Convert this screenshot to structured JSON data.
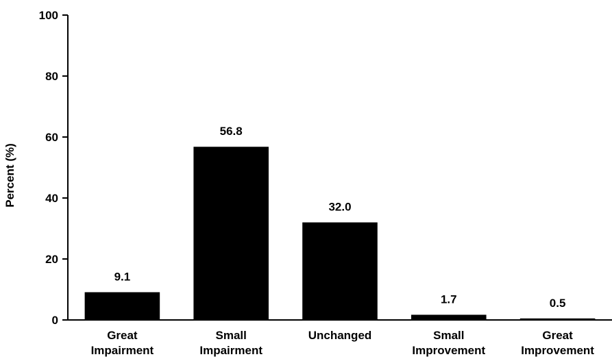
{
  "chart_data": {
    "type": "bar",
    "title": "",
    "xlabel": "",
    "ylabel": "Percent (%)",
    "ylim": [
      0,
      100
    ],
    "yticks": [
      0,
      20,
      40,
      60,
      80,
      100
    ],
    "categories": [
      [
        "Great",
        "Impairment"
      ],
      [
        "Small",
        "Impairment"
      ],
      [
        "Unchanged"
      ],
      [
        "Small",
        "Improvement"
      ],
      [
        "Great",
        "Improvement"
      ]
    ],
    "values": [
      9.1,
      56.8,
      32.0,
      1.7,
      0.5
    ],
    "value_labels": [
      "9.1",
      "56.8",
      "32.0",
      "1.7",
      "0.5"
    ],
    "grid": false,
    "bar_color": "#000000"
  }
}
